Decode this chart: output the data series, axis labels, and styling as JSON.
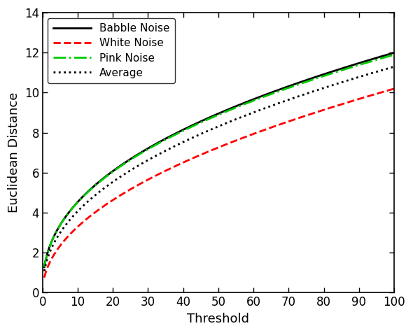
{
  "title": "",
  "xlabel": "Threshold",
  "ylabel": "Euclidean Distance",
  "xlim": [
    0,
    100
  ],
  "ylim": [
    0,
    14
  ],
  "xticks": [
    0,
    10,
    20,
    30,
    40,
    50,
    60,
    70,
    80,
    90,
    100
  ],
  "yticks": [
    0,
    2,
    4,
    6,
    8,
    10,
    12,
    14
  ],
  "curves": [
    {
      "label": "Babble Noise",
      "color": "#000000",
      "linestyle": "solid",
      "linewidth": 2.0,
      "x0": 2.0,
      "y0": 2.3,
      "x1": 100.0,
      "y1": 12.0
    },
    {
      "label": "White Noise",
      "color": "#ff0000",
      "linestyle": "dashed",
      "linewidth": 2.0,
      "x0": 2.0,
      "y0": 1.5,
      "x1": 100.0,
      "y1": 10.2
    },
    {
      "label": "Pink Noise",
      "color": "#00cc00",
      "linestyle": "dashdot",
      "linewidth": 2.0,
      "x0": 2.0,
      "y0": 2.3,
      "x1": 100.0,
      "y1": 11.9
    },
    {
      "label": "Average",
      "color": "#000000",
      "linestyle": "dotted",
      "linewidth": 2.0,
      "x0": 2.0,
      "y0": 2.0,
      "x1": 100.0,
      "y1": 11.3
    }
  ],
  "power": 0.78,
  "legend_loc": "upper left",
  "background_color": "#ffffff",
  "tick_fontsize": 12,
  "label_fontsize": 13
}
